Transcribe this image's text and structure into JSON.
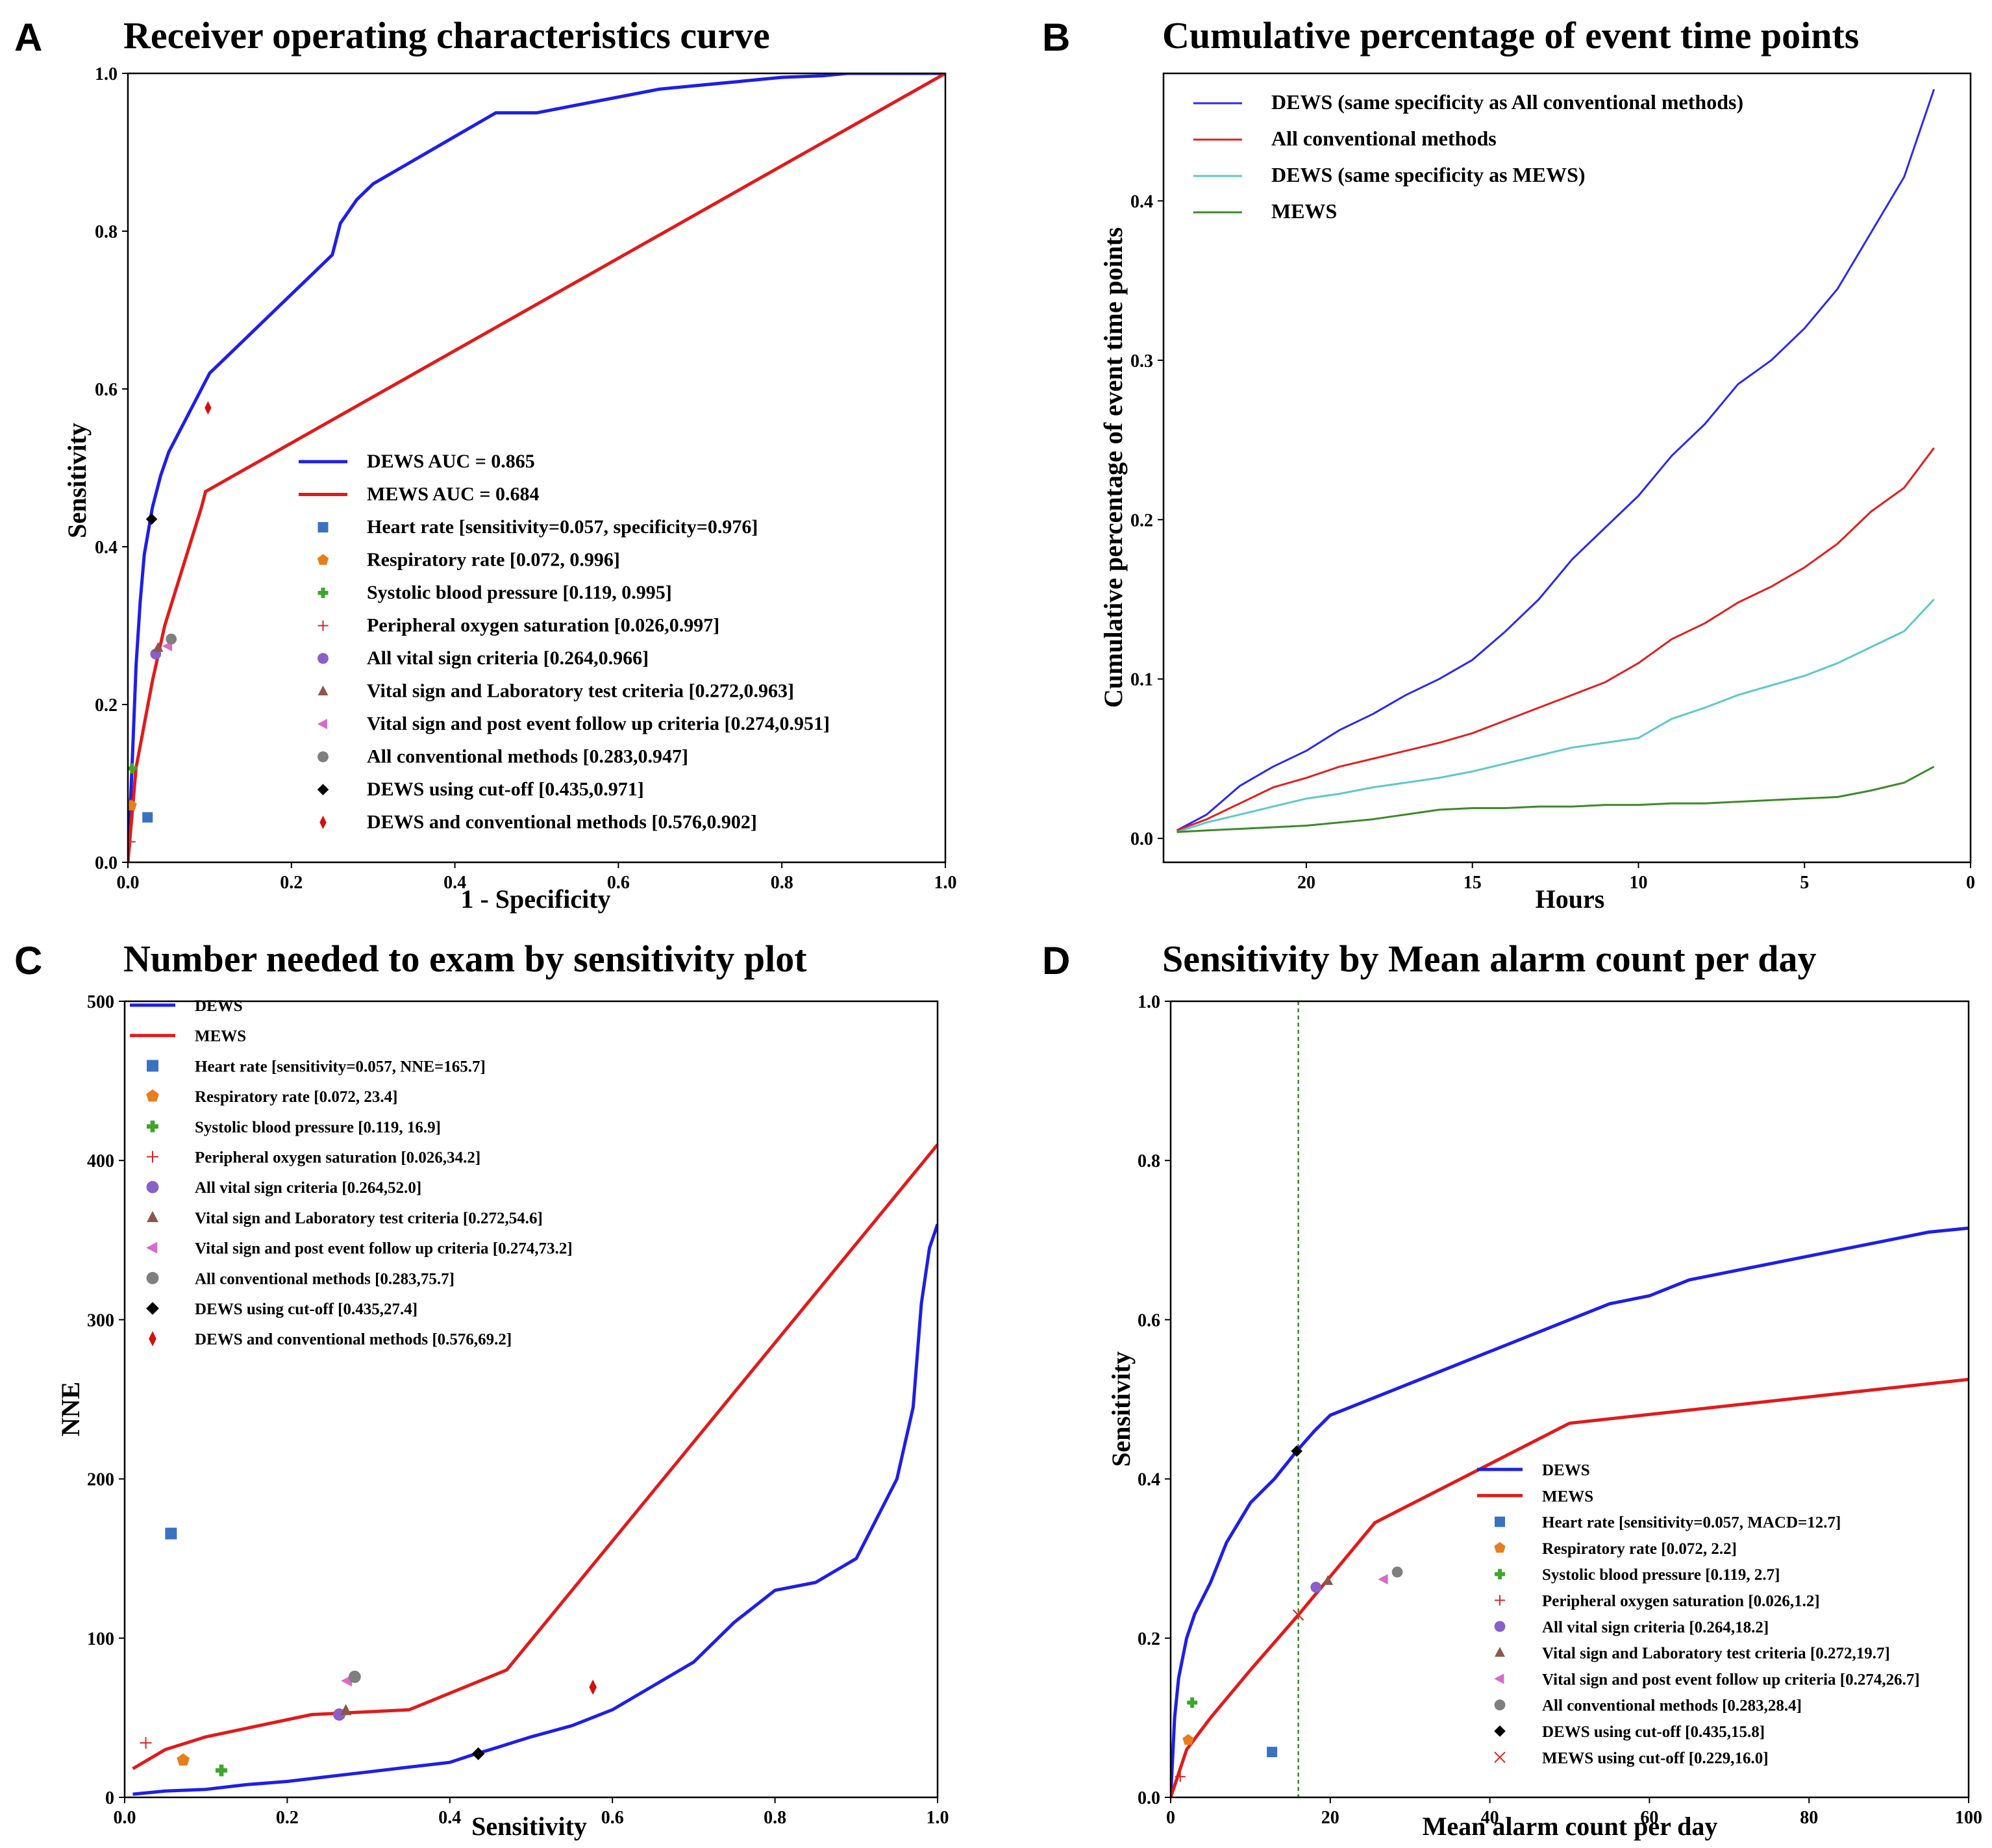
{
  "panels": [
    {
      "id": "A",
      "letter": "A",
      "title": "Receiver operating characteristics curve",
      "xlabel": "1 - Specificity",
      "ylabel": "Sensitivity"
    },
    {
      "id": "B",
      "letter": "B",
      "title": "Cumulative percentage of event time points",
      "xlabel": "Hours",
      "ylabel": "Cumulative percentage of event time points"
    },
    {
      "id": "C",
      "letter": "C",
      "title": "Number needed to exam by sensitivity plot",
      "xlabel": "Sensitivity",
      "ylabel": "NNE"
    },
    {
      "id": "D",
      "letter": "D",
      "title": "Sensitivity by Mean alarm count per day",
      "xlabel": "Mean alarm count per day",
      "ylabel": "Sensitivity"
    }
  ],
  "chart_data": [
    {
      "panel": "A",
      "type": "line",
      "title": "Receiver operating characteristics curve",
      "xlabel": "1 - Specificity",
      "ylabel": "Sensitivity",
      "xlim": [
        0,
        1
      ],
      "ylim": [
        0,
        1
      ],
      "xticks": [
        "0.0",
        "0.2",
        "0.4",
        "0.6",
        "0.8",
        "1.0"
      ],
      "yticks": [
        "0.0",
        "0.2",
        "0.4",
        "0.6",
        "0.8",
        "1.0"
      ],
      "legend_position": "lower-right",
      "series": [
        {
          "name": "DEWS AUC = 0.865",
          "color": "#1f1fe6",
          "x": [
            0,
            0.005,
            0.01,
            0.015,
            0.02,
            0.03,
            0.04,
            0.05,
            0.07,
            0.09,
            0.1,
            0.12,
            0.15,
            0.18,
            0.2,
            0.23,
            0.25,
            0.26,
            0.28,
            0.3,
            0.35,
            0.4,
            0.45,
            0.5,
            0.55,
            0.6,
            0.65,
            0.7,
            0.75,
            0.8,
            0.85,
            0.88,
            0.95,
            1.0
          ],
          "y": [
            0,
            0.12,
            0.25,
            0.33,
            0.39,
            0.45,
            0.49,
            0.52,
            0.56,
            0.6,
            0.62,
            0.64,
            0.67,
            0.7,
            0.72,
            0.75,
            0.77,
            0.81,
            0.84,
            0.86,
            0.89,
            0.92,
            0.95,
            0.95,
            0.96,
            0.97,
            0.98,
            0.985,
            0.99,
            0.995,
            0.997,
            1.0,
            1.0,
            1.0
          ]
        },
        {
          "name": "MEWS AUC = 0.684",
          "color": "#e01b1b",
          "x": [
            0,
            0.01,
            0.03,
            0.045,
            0.06,
            0.09,
            0.095,
            1.0
          ],
          "y": [
            0,
            0.12,
            0.23,
            0.3,
            0.35,
            0.45,
            0.47,
            1.0
          ]
        }
      ],
      "points": [
        {
          "name": "Heart rate [sensitivity=0.057, specificity=0.976]",
          "x": 0.024,
          "y": 0.057,
          "marker": "square",
          "color": "#3a72c0"
        },
        {
          "name": "Respiratory rate [0.072, 0.996]",
          "x": 0.004,
          "y": 0.072,
          "marker": "pentagon",
          "color": "#e87d1e"
        },
        {
          "name": "Systolic blood pressure [0.119, 0.995]",
          "x": 0.005,
          "y": 0.119,
          "marker": "plus",
          "color": "#3fa52b"
        },
        {
          "name": "Peripheral oxygen saturation [0.026,0.997]",
          "x": 0.003,
          "y": 0.026,
          "marker": "thinplus",
          "color": "#d62728"
        },
        {
          "name": "All vital sign criteria [0.264,0.966]",
          "x": 0.034,
          "y": 0.264,
          "marker": "circle",
          "color": "#8860c8"
        },
        {
          "name": "Vital sign and Laboratory test criteria [0.272,0.963]",
          "x": 0.037,
          "y": 0.272,
          "marker": "triangle",
          "color": "#8c564b"
        },
        {
          "name": "Vital sign and post event follow up criteria [0.274,0.951]",
          "x": 0.049,
          "y": 0.274,
          "marker": "triangle-left",
          "color": "#d86ac8"
        },
        {
          "name": "All conventional methods [0.283,0.947]",
          "x": 0.053,
          "y": 0.283,
          "marker": "circle",
          "color": "#7f7f7f"
        },
        {
          "name": "DEWS using cut-off [0.435,0.971]",
          "x": 0.029,
          "y": 0.435,
          "marker": "diamond",
          "color": "#000000"
        },
        {
          "name": "DEWS and conventional methods [0.576,0.902]",
          "x": 0.098,
          "y": 0.576,
          "marker": "thin-diamond",
          "color": "#d40f0f"
        }
      ]
    },
    {
      "panel": "B",
      "type": "line",
      "title": "Cumulative percentage of event time points",
      "xlabel": "Hours",
      "ylabel": "Cumulative percentage of event time points",
      "xlim": [
        24.3,
        0
      ],
      "ylim": [
        -0.015,
        0.48
      ],
      "xticks": [
        {
          "v": 20,
          "label": "20"
        },
        {
          "v": 15,
          "label": "15"
        },
        {
          "v": 10,
          "label": "10"
        },
        {
          "v": 5,
          "label": "5"
        },
        {
          "v": 0,
          "label": "0"
        }
      ],
      "yticks": [
        {
          "v": 0.0,
          "label": "0.0"
        },
        {
          "v": 0.1,
          "label": "0.1"
        },
        {
          "v": 0.2,
          "label": "0.2"
        },
        {
          "v": 0.3,
          "label": "0.3"
        },
        {
          "v": 0.4,
          "label": "0.4"
        }
      ],
      "legend_position": "upper-left",
      "series": [
        {
          "name": "DEWS (same specificity as All conventional methods)",
          "color": "#2a2af0",
          "x": [
            23.9,
            23,
            22,
            21,
            20,
            19,
            18,
            17,
            16,
            15,
            14,
            13,
            12,
            11,
            10,
            9,
            8,
            7,
            6,
            5,
            4,
            3,
            2,
            1.1
          ],
          "y": [
            0.005,
            0.015,
            0.033,
            0.045,
            0.055,
            0.068,
            0.078,
            0.09,
            0.1,
            0.112,
            0.13,
            0.15,
            0.175,
            0.195,
            0.215,
            0.24,
            0.26,
            0.285,
            0.3,
            0.32,
            0.345,
            0.38,
            0.415,
            0.47
          ]
        },
        {
          "name": "All conventional methods",
          "color": "#e02020",
          "x": [
            23.9,
            23,
            22,
            21,
            20,
            19,
            18,
            17,
            16,
            15,
            14,
            13,
            12,
            11,
            10,
            9,
            8,
            7,
            6,
            5,
            4,
            3,
            2,
            1.1
          ],
          "y": [
            0.005,
            0.012,
            0.022,
            0.032,
            0.038,
            0.045,
            0.05,
            0.055,
            0.06,
            0.066,
            0.074,
            0.082,
            0.09,
            0.098,
            0.11,
            0.125,
            0.135,
            0.148,
            0.158,
            0.17,
            0.185,
            0.205,
            0.22,
            0.245
          ]
        },
        {
          "name": "DEWS (same specificity as MEWS)",
          "color": "#5ec8c8",
          "x": [
            23.9,
            23,
            22,
            21,
            20,
            19,
            18,
            17,
            16,
            15,
            14,
            13,
            12,
            11,
            10,
            9,
            8,
            7,
            6,
            5,
            4,
            3,
            2,
            1.1
          ],
          "y": [
            0.004,
            0.01,
            0.015,
            0.02,
            0.025,
            0.028,
            0.032,
            0.035,
            0.038,
            0.042,
            0.047,
            0.052,
            0.057,
            0.06,
            0.063,
            0.075,
            0.082,
            0.09,
            0.096,
            0.102,
            0.11,
            0.12,
            0.13,
            0.15
          ]
        },
        {
          "name": "MEWS",
          "color": "#3d8a2a",
          "x": [
            23.9,
            23,
            22,
            21,
            20,
            19,
            18,
            17,
            16,
            15,
            14,
            13,
            12,
            11,
            10,
            9,
            8,
            7,
            6,
            5,
            4,
            3,
            2,
            1.1
          ],
          "y": [
            0.004,
            0.005,
            0.006,
            0.007,
            0.008,
            0.01,
            0.012,
            0.015,
            0.018,
            0.019,
            0.019,
            0.02,
            0.02,
            0.021,
            0.021,
            0.022,
            0.022,
            0.023,
            0.024,
            0.025,
            0.026,
            0.03,
            0.035,
            0.045
          ]
        }
      ]
    },
    {
      "panel": "C",
      "type": "line",
      "title": "Number needed to exam by sensitivity plot",
      "xlabel": "Sensitivity",
      "ylabel": "NNE",
      "xlim": [
        0,
        1
      ],
      "ylim": [
        0,
        500
      ],
      "xticks": [
        "0.0",
        "0.2",
        "0.4",
        "0.6",
        "0.8",
        "1.0"
      ],
      "yticks": [
        "0",
        "100",
        "200",
        "300",
        "400",
        "500"
      ],
      "legend_position": "upper-left",
      "series": [
        {
          "name": "DEWS",
          "color": "#1f1fe6",
          "x": [
            0.01,
            0.05,
            0.1,
            0.15,
            0.2,
            0.25,
            0.3,
            0.35,
            0.4,
            0.43,
            0.45,
            0.5,
            0.55,
            0.6,
            0.65,
            0.7,
            0.75,
            0.8,
            0.85,
            0.9,
            0.93,
            0.95,
            0.97,
            0.98,
            0.99,
            1.0
          ],
          "y": [
            2,
            4,
            5,
            8,
            10,
            13,
            16,
            19,
            22,
            27,
            30,
            38,
            45,
            55,
            70,
            85,
            110,
            130,
            135,
            150,
            180,
            200,
            245,
            310,
            345,
            360
          ]
        },
        {
          "name": "MEWS",
          "color": "#e01b1b",
          "x": [
            0.01,
            0.05,
            0.1,
            0.23,
            0.35,
            0.47,
            1.0
          ],
          "y": [
            18,
            30,
            38,
            52,
            55,
            80,
            410
          ]
        }
      ],
      "points": [
        {
          "name": "Heart rate [sensitivity=0.057, NNE=165.7]",
          "x": 0.057,
          "y": 165.7,
          "marker": "square",
          "color": "#3a72c0"
        },
        {
          "name": "Respiratory rate [0.072, 23.4]",
          "x": 0.072,
          "y": 23.4,
          "marker": "pentagon",
          "color": "#e87d1e"
        },
        {
          "name": "Systolic blood pressure [0.119, 16.9]",
          "x": 0.119,
          "y": 16.9,
          "marker": "plus",
          "color": "#3fa52b"
        },
        {
          "name": "Peripheral oxygen saturation [0.026,34.2]",
          "x": 0.026,
          "y": 34.2,
          "marker": "thinplus",
          "color": "#d62728"
        },
        {
          "name": "All vital sign criteria [0.264,52.0]",
          "x": 0.264,
          "y": 52.0,
          "marker": "circle",
          "color": "#8860c8"
        },
        {
          "name": "Vital sign and Laboratory test criteria [0.272,54.6]",
          "x": 0.272,
          "y": 54.6,
          "marker": "triangle",
          "color": "#8c564b"
        },
        {
          "name": "Vital sign and post event follow up criteria [0.274,73.2]",
          "x": 0.274,
          "y": 73.2,
          "marker": "triangle-left",
          "color": "#d86ac8"
        },
        {
          "name": "All conventional methods [0.283,75.7]",
          "x": 0.283,
          "y": 75.7,
          "marker": "circle",
          "color": "#7f7f7f"
        },
        {
          "name": "DEWS using cut-off [0.435,27.4]",
          "x": 0.435,
          "y": 27.4,
          "marker": "diamond",
          "color": "#000000"
        },
        {
          "name": "DEWS and conventional methods [0.576,69.2]",
          "x": 0.576,
          "y": 69.2,
          "marker": "thin-diamond",
          "color": "#d40f0f"
        }
      ]
    },
    {
      "panel": "D",
      "type": "line",
      "title": "Sensitivity by Mean alarm count per day",
      "xlabel": "Mean alarm count per day",
      "ylabel": "Sensitivity",
      "xlim": [
        0,
        100
      ],
      "ylim": [
        0,
        1
      ],
      "xticks": [
        "0",
        "20",
        "40",
        "60",
        "80",
        "100"
      ],
      "yticks": [
        "0.0",
        "0.2",
        "0.4",
        "0.6",
        "0.8",
        "1.0"
      ],
      "vline": {
        "x": 16,
        "color": "#3d8a2a",
        "style": "dashed"
      },
      "legend_position": "lower-right",
      "series": [
        {
          "name": "DEWS",
          "color": "#1f1fe6",
          "x": [
            0,
            0.5,
            1,
            2,
            3,
            5,
            7,
            10,
            13,
            15.8,
            18,
            20,
            25,
            30,
            35,
            40,
            45,
            50,
            55,
            60,
            65,
            70,
            75,
            80,
            85,
            90,
            95,
            100
          ],
          "y": [
            0,
            0.1,
            0.15,
            0.2,
            0.23,
            0.27,
            0.32,
            0.37,
            0.4,
            0.435,
            0.46,
            0.48,
            0.5,
            0.52,
            0.54,
            0.56,
            0.58,
            0.6,
            0.62,
            0.63,
            0.65,
            0.66,
            0.67,
            0.68,
            0.69,
            0.7,
            0.71,
            0.715
          ]
        },
        {
          "name": "MEWS",
          "color": "#e01b1b",
          "x": [
            0,
            1,
            2,
            5,
            10,
            16,
            25.6,
            50,
            100
          ],
          "y": [
            0,
            0.03,
            0.06,
            0.1,
            0.16,
            0.229,
            0.345,
            0.47,
            0.525
          ]
        }
      ],
      "points": [
        {
          "name": "Heart rate [sensitivity=0.057, MACD=12.7]",
          "x": 12.7,
          "y": 0.057,
          "marker": "square",
          "color": "#3a72c0"
        },
        {
          "name": "Respiratory rate [0.072, 2.2]",
          "x": 2.2,
          "y": 0.072,
          "marker": "pentagon",
          "color": "#e87d1e"
        },
        {
          "name": "Systolic blood pressure [0.119, 2.7]",
          "x": 2.7,
          "y": 0.119,
          "marker": "plus",
          "color": "#3fa52b"
        },
        {
          "name": "Peripheral oxygen saturation [0.026,1.2]",
          "x": 1.2,
          "y": 0.026,
          "marker": "thinplus",
          "color": "#d62728"
        },
        {
          "name": "All vital sign criteria [0.264,18.2]",
          "x": 18.2,
          "y": 0.264,
          "marker": "circle",
          "color": "#8860c8"
        },
        {
          "name": "Vital sign and Laboratory test criteria [0.272,19.7]",
          "x": 19.7,
          "y": 0.272,
          "marker": "triangle",
          "color": "#8c564b"
        },
        {
          "name": "Vital sign and post event follow up criteria [0.274,26.7]",
          "x": 26.7,
          "y": 0.274,
          "marker": "triangle-left",
          "color": "#d86ac8"
        },
        {
          "name": "All conventional methods [0.283,28.4]",
          "x": 28.4,
          "y": 0.283,
          "marker": "circle",
          "color": "#7f7f7f"
        },
        {
          "name": "DEWS using cut-off [0.435,15.8]",
          "x": 15.8,
          "y": 0.435,
          "marker": "diamond",
          "color": "#000000"
        },
        {
          "name": "MEWS using cut-off [0.229,16.0]",
          "x": 16.0,
          "y": 0.229,
          "marker": "x",
          "color": "#e02020"
        }
      ]
    }
  ]
}
